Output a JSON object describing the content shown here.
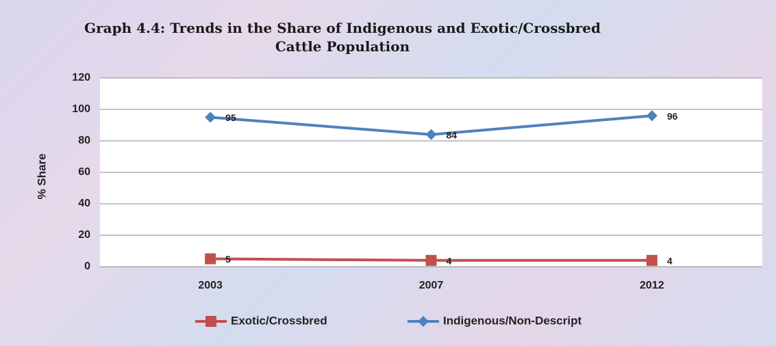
{
  "chart_data": {
    "type": "line",
    "title": "Graph 4.4: Trends in the Share of Indigenous and Exotic/Crossbred Cattle Population",
    "y_label": "% Share",
    "categories": [
      "2003",
      "2007",
      "2012"
    ],
    "series": [
      {
        "name": "Exotic/Crossbred",
        "color": "#c0504d",
        "marker": "square",
        "values": [
          5,
          4,
          4
        ]
      },
      {
        "name": "Indigenous/Non-Descript",
        "color": "#4f81bd",
        "marker": "diamond",
        "values": [
          95,
          84,
          96
        ]
      }
    ],
    "ylim": [
      0,
      120
    ],
    "yticks": [
      0,
      20,
      40,
      60,
      80,
      100,
      120
    ],
    "grid": true,
    "legend": "bottom"
  }
}
